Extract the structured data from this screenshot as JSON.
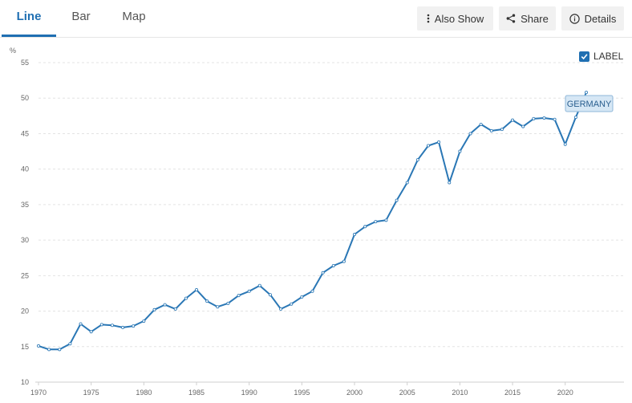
{
  "tabs": [
    {
      "label": "Line",
      "active": true
    },
    {
      "label": "Bar",
      "active": false
    },
    {
      "label": "Map",
      "active": false
    }
  ],
  "toolbar": {
    "also_show_label": "Also Show",
    "share_label": "Share",
    "details_label": "Details"
  },
  "label_toggle": {
    "label": "LABEL",
    "checked": true
  },
  "colors": {
    "accent": "#1f6fb2",
    "series": "#2a77b5",
    "grid": "#e3e3e3",
    "tooltip_bg": "#d6e7f5"
  },
  "chart_data": {
    "type": "line",
    "ylabel": "%",
    "ylim": [
      10,
      55
    ],
    "xlim": [
      1970,
      2022
    ],
    "yticks": [
      10,
      15,
      20,
      25,
      30,
      35,
      40,
      45,
      50,
      55
    ],
    "xticks": [
      1970,
      1975,
      1980,
      1985,
      1990,
      1995,
      2000,
      2005,
      2010,
      2015,
      2020
    ],
    "grid": true,
    "series": [
      {
        "name": "GERMANY",
        "x": [
          1970,
          1971,
          1972,
          1973,
          1974,
          1975,
          1976,
          1977,
          1978,
          1979,
          1980,
          1981,
          1982,
          1983,
          1984,
          1985,
          1986,
          1987,
          1988,
          1989,
          1990,
          1991,
          1992,
          1993,
          1994,
          1995,
          1996,
          1997,
          1998,
          1999,
          2000,
          2001,
          2002,
          2003,
          2004,
          2005,
          2006,
          2007,
          2008,
          2009,
          2010,
          2011,
          2012,
          2013,
          2014,
          2015,
          2016,
          2017,
          2018,
          2019,
          2020,
          2021,
          2022
        ],
        "values": [
          15.1,
          14.6,
          14.6,
          15.4,
          18.2,
          17.1,
          18.1,
          18.0,
          17.7,
          17.9,
          18.6,
          20.2,
          20.9,
          20.3,
          21.8,
          23.0,
          21.4,
          20.6,
          21.1,
          22.2,
          22.8,
          23.6,
          22.3,
          20.3,
          21.0,
          22.0,
          22.8,
          25.4,
          26.4,
          27.0,
          30.8,
          31.9,
          32.6,
          32.8,
          35.6,
          38.1,
          41.3,
          43.3,
          43.8,
          38.1,
          42.5,
          45.0,
          46.3,
          45.4,
          45.6,
          46.9,
          46.0,
          47.1,
          47.2,
          47.0,
          43.5,
          47.3,
          50.8
        ]
      }
    ]
  }
}
